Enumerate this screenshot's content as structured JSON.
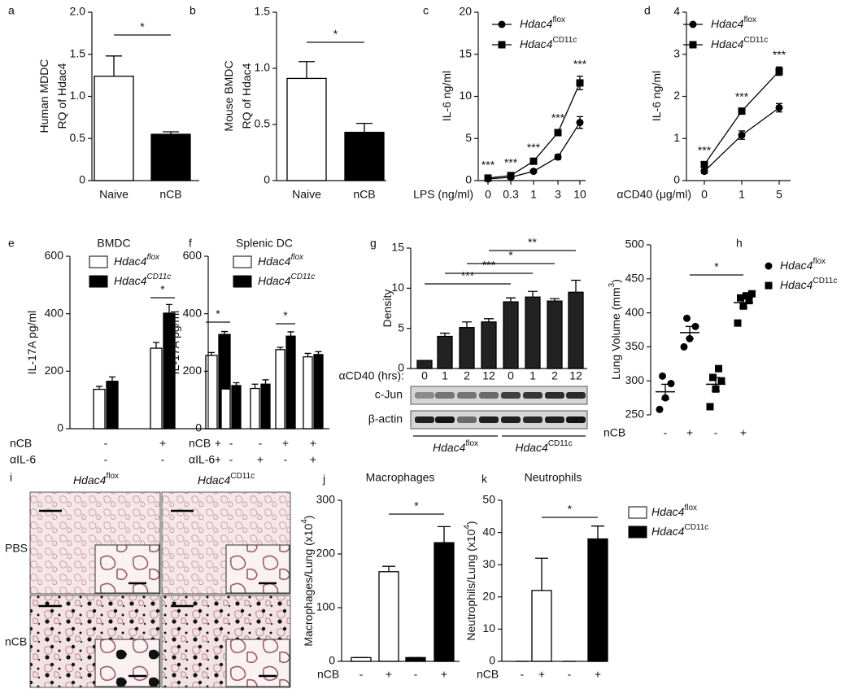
{
  "chart_data": [
    {
      "panel": "a",
      "type": "bar",
      "ylabel": [
        "Human MDDC",
        "RQ of Hdac4"
      ],
      "categories": [
        "Naive",
        "nCB"
      ],
      "values": [
        1.24,
        0.55
      ],
      "errors": [
        0.24,
        0.03
      ],
      "colors": [
        "#ffffff",
        "#000000"
      ],
      "ylim": [
        0,
        2
      ],
      "yticks": [
        0,
        0.5,
        {
          "value": 1,
          "label": "1.0"
        },
        1.5,
        {
          "value": 2,
          "label": "2.0"
        }
      ],
      "annotations": [
        "*"
      ]
    },
    {
      "panel": "b",
      "type": "bar",
      "ylabel": [
        "Mouse BMDC",
        "RQ of Hdac4"
      ],
      "categories": [
        "Naive",
        "nCB"
      ],
      "values": [
        0.91,
        0.43
      ],
      "errors": [
        0.15,
        0.08
      ],
      "colors": [
        "#ffffff",
        "#000000"
      ],
      "ylim": [
        0,
        1.5
      ],
      "yticks": [
        0,
        0.5,
        {
          "value": 1,
          "label": "1.0"
        },
        1.5
      ],
      "annotations": [
        "*"
      ]
    },
    {
      "panel": "c",
      "type": "line",
      "ylabel": "IL-6 ng/ml",
      "xlabel": "LPS (ng/ml)",
      "categories": [
        "0",
        "0.3",
        "1",
        "3",
        "10"
      ],
      "ylim": [
        0,
        20
      ],
      "yticks": [
        0,
        5,
        10,
        15,
        20
      ],
      "series": [
        {
          "name": "Hdac4",
          "name_sup": "flox",
          "marker": "circle",
          "color": "#000000",
          "values": [
            0.2,
            0.4,
            1.1,
            2.8,
            6.9
          ],
          "errors": [
            0.1,
            0.1,
            0.1,
            0.3,
            0.7
          ]
        },
        {
          "name": "Hdac4",
          "name_sup": "CD11c",
          "marker": "square",
          "color": "#000000",
          "values": [
            0.3,
            0.6,
            2.3,
            5.7,
            11.6
          ],
          "errors": [
            0.1,
            0.1,
            0.2,
            0.3,
            0.8
          ]
        }
      ],
      "annotations": [
        "***",
        "***",
        "***",
        "***",
        "***"
      ]
    },
    {
      "panel": "d",
      "type": "line",
      "ylabel": "IL-6 ng/ml",
      "xlabel": "αCD40 (μg/ml)",
      "categories": [
        "0",
        "1",
        "5"
      ],
      "ylim": [
        0,
        4
      ],
      "yticks": [
        0,
        1,
        2,
        3,
        4
      ],
      "series": [
        {
          "name": "Hdac4",
          "name_sup": "flox",
          "marker": "circle",
          "color": "#000000",
          "values": [
            0.22,
            1.08,
            1.73
          ],
          "errors": [
            0.05,
            0.1,
            0.1
          ]
        },
        {
          "name": "Hdac4",
          "name_sup": "CD11c",
          "marker": "square",
          "color": "#000000",
          "values": [
            0.38,
            1.65,
            2.6
          ],
          "errors": [
            0.05,
            0.05,
            0.1
          ]
        }
      ],
      "annotations": [
        "***",
        "***",
        "***"
      ]
    },
    {
      "panel": "e",
      "type": "bar",
      "title": "BMDC",
      "ylabel": "IL-17A pg/ml",
      "ylim": [
        0,
        600
      ],
      "yticks": [
        0,
        200,
        400,
        600
      ],
      "series": [
        {
          "name": "Hdac4",
          "name_sup": "flox",
          "color": "#ffffff",
          "values": [
            137,
            280,
            255
          ],
          "errors": [
            10,
            20,
            10
          ]
        },
        {
          "name": "Hdac4",
          "name_sup": "CD11c",
          "color": "#000000",
          "values": [
            165,
            402,
            328
          ],
          "errors": [
            15,
            30,
            10
          ]
        }
      ],
      "rows": [
        {
          "label": "nCB",
          "values": [
            "-",
            "+",
            "+"
          ]
        },
        {
          "label": "αIL-6",
          "values": [
            "-",
            "-",
            "+"
          ]
        }
      ],
      "annotations": [
        "*",
        "*"
      ]
    },
    {
      "panel": "f",
      "type": "bar",
      "title": "Splenic DC",
      "ylabel": "IL-17A pg/ml",
      "ylim": [
        0,
        600
      ],
      "yticks": [
        0,
        200,
        400,
        600
      ],
      "series": [
        {
          "name": "Hdac4",
          "name_sup": "flox",
          "color": "#ffffff",
          "values": [
            138,
            140,
            275,
            250
          ],
          "errors": [
            10,
            15,
            8,
            12
          ]
        },
        {
          "name": "Hdac4",
          "name_sup": "CD11c",
          "color": "#000000",
          "values": [
            150,
            155,
            322,
            258
          ],
          "errors": [
            10,
            15,
            15,
            10
          ]
        }
      ],
      "rows": [
        {
          "label": "nCB",
          "values": [
            "-",
            "-",
            "+",
            "+"
          ]
        },
        {
          "label": "αIL-6",
          "values": [
            "-",
            "+",
            "-",
            "+"
          ]
        }
      ],
      "annotations": [
        "*"
      ]
    },
    {
      "panel": "g",
      "type": "bar",
      "ylabel": "Density",
      "category_label": "αCD40 (hrs):",
      "categories": [
        "0",
        "1",
        "2",
        "12",
        "0",
        "1",
        "2",
        "12"
      ],
      "values": [
        1,
        4,
        5.1,
        5.8,
        8.3,
        8.9,
        8.4,
        9.5
      ],
      "errors": [
        0,
        0.4,
        0.7,
        0.4,
        0.5,
        0.7,
        0.3,
        1.5
      ],
      "color": "#222222",
      "ylim": [
        0,
        15
      ],
      "yticks": [
        0,
        5,
        10,
        15
      ],
      "annotations": [
        "***",
        "***",
        "*",
        "**"
      ],
      "blot": {
        "bands": [
          "c-Jun",
          "β-actin"
        ],
        "groups": [
          {
            "name": "Hdac4",
            "name_sup": "flox"
          },
          {
            "name": "Hdac4",
            "name_sup": "CD11c"
          }
        ]
      }
    },
    {
      "panel": "h",
      "type": "scatter",
      "ylabel": "Lung Volume (mm",
      "ylabel_sup": "3",
      "ylabel_tail": ")",
      "ylim": [
        250,
        500
      ],
      "yticks": [
        250,
        300,
        350,
        400,
        450,
        500
      ],
      "series": [
        {
          "name": "Hdac4",
          "name_sup": "flox",
          "marker": "circle",
          "color": "#000000",
          "values": [
            [
              258,
              275,
              296,
              307
            ],
            [
              350,
              362,
              380,
              392
            ]
          ],
          "means": [
            284,
            371
          ],
          "sems": [
            11,
            9
          ]
        },
        {
          "name": "Hdac4",
          "name_sup": "CD11c",
          "marker": "square",
          "color": "#000000",
          "values": [
            [
              262,
              288,
              300,
              305,
              318
            ],
            [
              385,
              410,
              418,
              422,
              425,
              428
            ]
          ],
          "means": [
            295,
            415
          ],
          "sems": [
            10,
            7
          ]
        }
      ],
      "rows": [
        {
          "label": "nCB",
          "values": [
            "-",
            "+",
            "-",
            "+"
          ]
        }
      ],
      "annotations": [
        "*"
      ]
    },
    {
      "panel": "i",
      "type": "image",
      "columns": [
        {
          "name": "Hdac4",
          "name_sup": "flox"
        },
        {
          "name": "Hdac4",
          "name_sup": "CD11c"
        }
      ],
      "rows": [
        "PBS",
        "nCB"
      ]
    },
    {
      "panel": "j",
      "type": "bar",
      "title": "Macrophages",
      "ylabel": "Macrophages/Lung (x10",
      "ylabel_sup": "4",
      "ylabel_tail": ")",
      "values": [
        7,
        167,
        7,
        221
      ],
      "errors": [
        0,
        10,
        0,
        30
      ],
      "colors": [
        "#ffffff",
        "#ffffff",
        "#000000",
        "#000000"
      ],
      "ylim": [
        0,
        300
      ],
      "yticks": [
        0,
        100,
        200,
        300
      ],
      "rows": [
        {
          "label": "nCB",
          "values": [
            "-",
            "+",
            "-",
            "+"
          ]
        }
      ],
      "annotations": [
        "*"
      ]
    },
    {
      "panel": "k",
      "type": "bar",
      "title": "Neutrophils",
      "ylabel": "Neutrophils/Lung (x10",
      "ylabel_sup": "4",
      "ylabel_tail": ")",
      "values": [
        0,
        22,
        0,
        38
      ],
      "errors": [
        0,
        10,
        0,
        4
      ],
      "colors": [
        "#ffffff",
        "#ffffff",
        "#000000",
        "#000000"
      ],
      "ylim": [
        0,
        50
      ],
      "yticks": [
        0,
        10,
        20,
        30,
        40,
        50
      ],
      "rows": [
        {
          "label": "nCB",
          "values": [
            "-",
            "+",
            "-",
            "+"
          ]
        }
      ],
      "annotations": [
        "*"
      ],
      "legend": [
        {
          "name": "Hdac4",
          "name_sup": "flox",
          "color": "#ffffff"
        },
        {
          "name": "Hdac4",
          "name_sup": "CD11c",
          "color": "#000000"
        }
      ]
    }
  ]
}
